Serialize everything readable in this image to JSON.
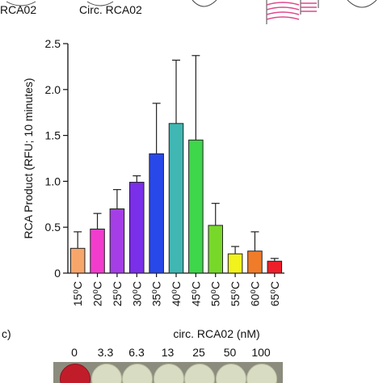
{
  "top_labels": {
    "linear": "RCA02",
    "circular": "Circ. RCA02"
  },
  "chart_data": {
    "type": "bar",
    "ylabel": "RCA Product (RFU; 10 minutes)",
    "xlabel": "",
    "ylim": [
      0,
      2.5
    ],
    "yticks": [
      "0",
      "0.5",
      "1.0",
      "1.5",
      "2.0",
      "2.5"
    ],
    "categories": [
      "15⁰C",
      "20⁰C",
      "25⁰C",
      "30⁰C",
      "35⁰C",
      "40⁰C",
      "45⁰C",
      "50⁰C",
      "55⁰C",
      "60⁰C",
      "65⁰C"
    ],
    "values": [
      0.27,
      0.48,
      0.7,
      0.99,
      1.3,
      1.63,
      1.45,
      0.52,
      0.21,
      0.24,
      0.13
    ],
    "errors": [
      0.18,
      0.17,
      0.21,
      0.07,
      0.55,
      0.69,
      0.92,
      0.24,
      0.08,
      0.21,
      0.03
    ],
    "colors": [
      "#f7a66b",
      "#f23ccd",
      "#a53ee6",
      "#7a2fe8",
      "#2848ea",
      "#40b7b2",
      "#3ed64a",
      "#78d82a",
      "#f2f21c",
      "#f07c2a",
      "#ef1f2a"
    ]
  },
  "panel_c": {
    "label": "c)",
    "title": "circ. RCA02 (nM)",
    "concentrations": [
      "0",
      "3.3",
      "6.3",
      "13",
      "25",
      "50",
      "100"
    ]
  }
}
